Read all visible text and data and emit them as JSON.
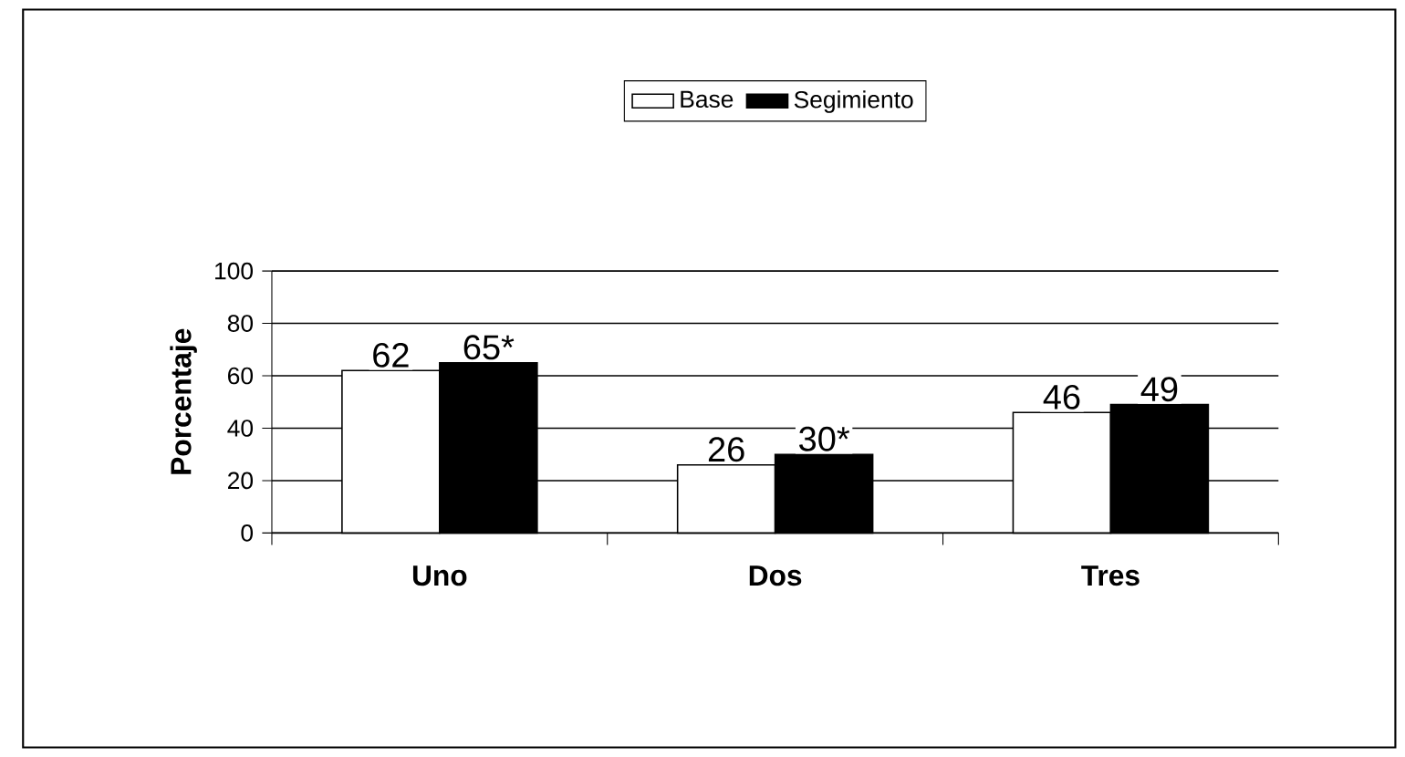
{
  "chart_data": {
    "type": "bar",
    "ylabel": "Porcentaje",
    "categories": [
      "Uno",
      "Dos",
      "Tres"
    ],
    "series": [
      {
        "name": "Base",
        "color": "#ffffff",
        "values": [
          62,
          26,
          46
        ],
        "value_labels": [
          "62",
          "26",
          "46"
        ]
      },
      {
        "name": "Segimiento",
        "color": "#000000",
        "values": [
          65,
          30,
          49
        ],
        "value_labels": [
          "65*",
          "30*",
          "49"
        ]
      }
    ],
    "ylim": [
      0,
      100
    ],
    "yticks": [
      0,
      20,
      40,
      60,
      80,
      100
    ],
    "grid": "y",
    "legend": "top"
  }
}
